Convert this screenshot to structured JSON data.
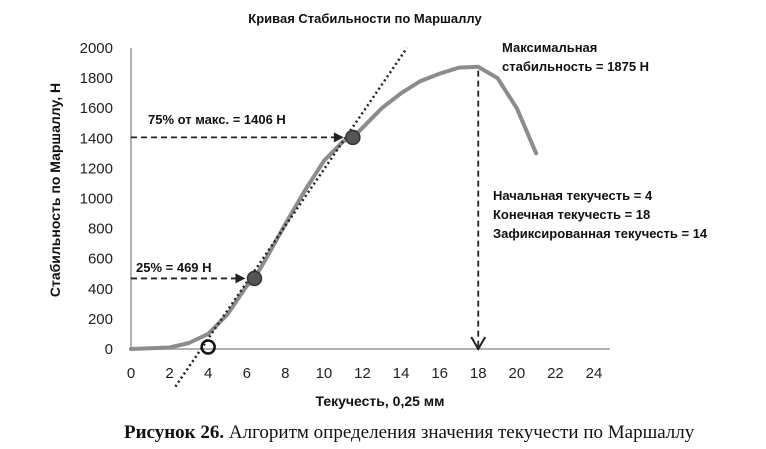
{
  "chart_data": {
    "type": "line",
    "title": "Кривая Стабильности по Маршаллу",
    "xlabel": "Текучесть, 0,25 мм",
    "ylabel": "Стабильность по Маршаллу,  Н",
    "xlim": [
      0,
      24
    ],
    "ylim": [
      0,
      2000
    ],
    "x_ticks": [
      "0",
      "2",
      "4",
      "6",
      "8",
      "10",
      "12",
      "14",
      "16",
      "18",
      "20",
      "22",
      "24"
    ],
    "y_ticks": [
      "0",
      "200",
      "400",
      "600",
      "800",
      "1000",
      "1200",
      "1400",
      "1600",
      "1800",
      "2000"
    ],
    "grid": false,
    "series": [
      {
        "x": [
          0,
          1,
          2,
          3,
          4,
          5,
          6,
          6.4,
          7,
          8,
          9,
          10,
          11,
          11.5,
          12,
          13,
          14,
          15,
          16,
          17,
          18,
          19,
          20,
          20.5,
          21
        ],
        "y": [
          0,
          5,
          10,
          40,
          100,
          230,
          420,
          469,
          600,
          830,
          1050,
          1250,
          1380,
          1406,
          1470,
          1600,
          1700,
          1780,
          1830,
          1870,
          1875,
          1800,
          1600,
          1450,
          1300
        ]
      }
    ],
    "tangent_line": {
      "x": [
        2.3,
        14.3
      ],
      "y": [
        -250,
        2000
      ]
    },
    "markers": [
      {
        "x": 6.4,
        "y": 469
      },
      {
        "x": 11.5,
        "y": 1406
      },
      {
        "x": 4,
        "y": 0
      }
    ],
    "annotations": [
      "75% от макс. = 1406 Н",
      "25% = 469 Н",
      "Максимальная",
      "стабильность = 1875 Н",
      "Начальная текучесть = 4",
      "Конечная текучесть = 18",
      "Зафиксированная текучесть = 14"
    ]
  },
  "caption": {
    "label": "Рисунок 26.",
    "text": " Алгоритм определения значения текучести по Маршаллу"
  }
}
